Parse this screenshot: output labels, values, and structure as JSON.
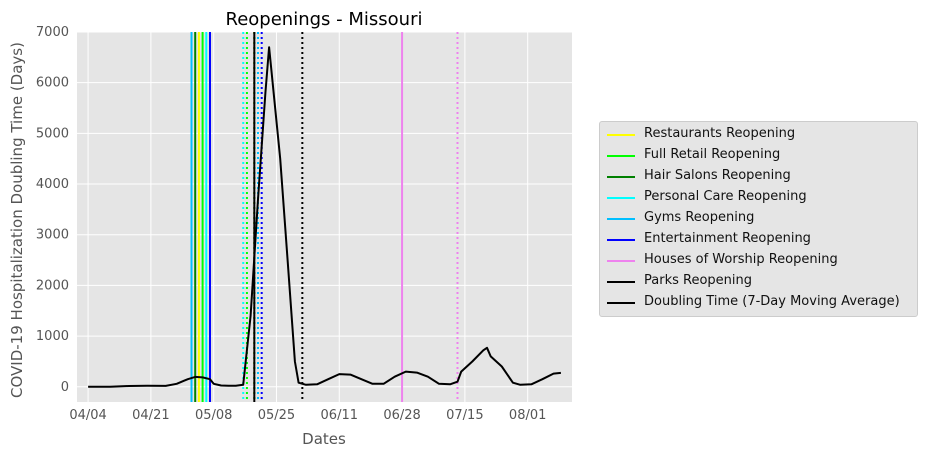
{
  "chart_data": {
    "type": "line",
    "title": "Reopenings - Missouri",
    "xlabel": "Dates",
    "ylabel": "COVID-19 Hospitalization Doubling Time (Days)",
    "x_axis": {
      "start": "04/04",
      "end": "08/10",
      "tick_labels": [
        "04/04",
        "04/21",
        "05/08",
        "05/25",
        "06/11",
        "06/28",
        "07/15",
        "08/01"
      ],
      "tick_dates": [
        "04/04",
        "04/21",
        "05/08",
        "05/25",
        "06/11",
        "06/28",
        "07/15",
        "08/01"
      ]
    },
    "ylim": [
      -300,
      7000
    ],
    "yticks": [
      0,
      1000,
      2000,
      3000,
      4000,
      5000,
      6000,
      7000
    ],
    "grid": true,
    "legend_placement": "right",
    "series": [
      {
        "name": "Doubling Time (7-Day Moving Average)",
        "color": "#000000",
        "points": [
          [
            "04/04",
            0
          ],
          [
            "04/10",
            0
          ],
          [
            "04/15",
            15
          ],
          [
            "04/20",
            20
          ],
          [
            "04/25",
            18
          ],
          [
            "04/28",
            60
          ],
          [
            "04/30",
            120
          ],
          [
            "05/01",
            150
          ],
          [
            "05/03",
            195
          ],
          [
            "05/05",
            185
          ],
          [
            "05/07",
            150
          ],
          [
            "05/08",
            60
          ],
          [
            "05/10",
            25
          ],
          [
            "05/12",
            20
          ],
          [
            "05/14",
            20
          ],
          [
            "05/16",
            40
          ],
          [
            "05/18",
            1400
          ],
          [
            "05/20",
            3700
          ],
          [
            "05/22",
            5800
          ],
          [
            "05/23",
            6700
          ],
          [
            "05/26",
            4500
          ],
          [
            "05/28",
            2500
          ],
          [
            "05/30",
            500
          ],
          [
            "05/31",
            80
          ],
          [
            "06/02",
            40
          ],
          [
            "06/05",
            50
          ],
          [
            "06/08",
            150
          ],
          [
            "06/11",
            250
          ],
          [
            "06/14",
            240
          ],
          [
            "06/17",
            150
          ],
          [
            "06/20",
            60
          ],
          [
            "06/23",
            60
          ],
          [
            "06/26",
            200
          ],
          [
            "06/29",
            300
          ],
          [
            "07/02",
            280
          ],
          [
            "07/05",
            200
          ],
          [
            "07/08",
            60
          ],
          [
            "07/11",
            50
          ],
          [
            "07/13",
            100
          ],
          [
            "07/14",
            300
          ],
          [
            "07/17",
            500
          ],
          [
            "07/20",
            720
          ],
          [
            "07/21",
            770
          ],
          [
            "07/22",
            600
          ],
          [
            "07/25",
            400
          ],
          [
            "07/28",
            80
          ],
          [
            "07/30",
            40
          ],
          [
            "08/02",
            50
          ],
          [
            "08/05",
            150
          ],
          [
            "08/08",
            260
          ],
          [
            "08/10",
            275
          ]
        ]
      }
    ],
    "reopening_markers": [
      {
        "name": "Restaurants Reopening",
        "color": "#ffff00",
        "markers": [
          {
            "date": "05/04",
            "style": "solid"
          },
          {
            "date": "05/19",
            "style": "dotted"
          }
        ]
      },
      {
        "name": "Full Retail Reopening",
        "color": "#00ff00",
        "markers": [
          {
            "date": "05/05",
            "style": "solid"
          },
          {
            "date": "05/17",
            "style": "dotted"
          }
        ]
      },
      {
        "name": "Hair Salons Reopening",
        "color": "#008000",
        "markers": [
          {
            "date": "05/03",
            "style": "solid"
          },
          {
            "date": "05/19",
            "style": "dotted"
          }
        ]
      },
      {
        "name": "Personal Care Reopening",
        "color": "#00ffff",
        "markers": [
          {
            "date": "05/06",
            "style": "solid"
          },
          {
            "date": "05/16",
            "style": "dotted"
          }
        ]
      },
      {
        "name": "Gyms Reopening",
        "color": "#00bfff",
        "markers": [
          {
            "date": "05/02",
            "style": "solid"
          },
          {
            "date": "05/20",
            "style": "dotted"
          }
        ]
      },
      {
        "name": "Entertainment Reopening",
        "color": "#0000ff",
        "markers": [
          {
            "date": "05/07",
            "style": "solid"
          },
          {
            "date": "05/21",
            "style": "dotted"
          }
        ]
      },
      {
        "name": "Houses of Worship Reopening",
        "color": "#ee82ee",
        "markers": [
          {
            "date": "06/28",
            "style": "solid"
          },
          {
            "date": "07/13",
            "style": "dotted"
          }
        ]
      },
      {
        "name": "Parks Reopening",
        "color": "#000000",
        "markers": [
          {
            "date": "05/19",
            "style": "solid"
          },
          {
            "date": "06/01",
            "style": "dotted"
          }
        ]
      }
    ]
  }
}
